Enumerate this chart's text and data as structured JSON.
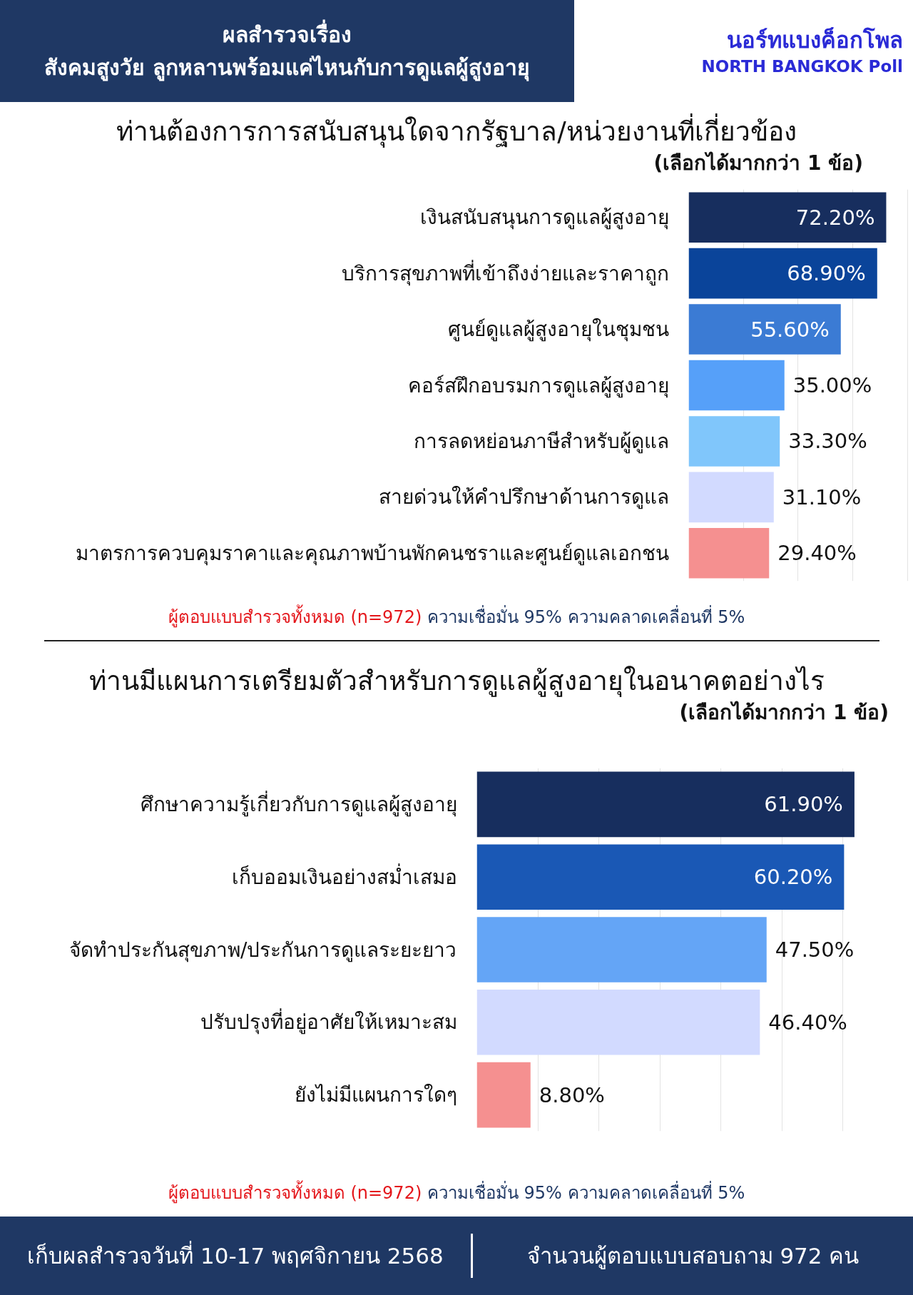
{
  "chart_data": [
    {
      "type": "other",
      "title": "ผลสำรวจเรื่อง",
      "subtitle": "สังคมสูงวัย ลูกหลานพร้อมแค่ไหนกับการดูแลผู้สูงอายุ",
      "annotations": [
        "นอร์ทแบงค็อกโพล",
        "NORTH BANGKOK Poll"
      ]
    },
    {
      "type": "bar",
      "orientation": "horizontal",
      "title": "ท่านต้องการการสนับสนุนใดจากรัฐบาล/หน่วยงานที่เกี่ยวข้อง",
      "subtitle": "(เลือกได้มากกว่า 1 ข้อ)",
      "categories": [
        "เงินสนับสนุนการดูแลผู้สูงอายุ",
        "บริการสุขภาพที่เข้าถึงง่ายและราคาถูก",
        "ศูนย์ดูแลผู้สูงอายุในชุมชน",
        "คอร์สฝึกอบรมการดูแลผู้สูงอายุ",
        "การลดหย่อนภาษีสำหรับผู้ดูแล",
        "สายด่วนให้คำปรึกษาด้านการดูแล",
        "มาตรการควบคุมราคาและคุณภาพบ้านพักคนชราและศูนย์ดูแลเอกชน"
      ],
      "values": [
        72.2,
        68.9,
        55.6,
        35.0,
        33.3,
        31.1,
        29.4
      ],
      "colors": [
        "#172e5e",
        "#0a449a",
        "#3b7bd4",
        "#56a0f9",
        "#80c6fb",
        "#d2daff",
        "#f59090"
      ],
      "value_labels": [
        "72.20%",
        "68.90%",
        "55.60%",
        "35.00%",
        "33.30%",
        "31.10%",
        "29.40%"
      ],
      "xticks": [
        {
          "value": 20,
          "label": null
        },
        {
          "value": 40,
          "label": null
        },
        {
          "value": 60,
          "label": null
        },
        {
          "value": 80,
          "label": null
        }
      ],
      "grid": "x",
      "tick_labels": "y",
      "annotations": [
        "ผู้ตอบแบบสำรวจทั้งหมด (n=972)",
        "ความเชื่อมั่น 95% ความคลาดเคลื่อนที่ 5%"
      ]
    },
    {
      "type": "bar",
      "orientation": "horizontal",
      "title": "ท่านมีแผนการเตรียมตัวสำหรับการดูแลผู้สูงอายุในอนาคตอย่างไร",
      "subtitle": "(เลือกได้มากกว่า 1 ข้อ)",
      "categories": [
        "ศึกษาความรู้เกี่ยวกับการดูแลผู้สูงอายุ",
        "เก็บออมเงินอย่างสม่ำเสมอ",
        "จัดทำประกันสุขภาพ/ประกันการดูแลระยะยาว",
        "ปรับปรุงที่อยู่อาศัยให้เหมาะสม",
        "ยังไม่มีแผนการใดๆ"
      ],
      "values": [
        61.9,
        60.2,
        47.5,
        46.4,
        8.8
      ],
      "colors": [
        "#172e5e",
        "#1a58b5",
        "#64a5f6",
        "#d2daff",
        "#f59090"
      ],
      "value_labels": [
        "61.90%",
        "60.20%",
        "47.50%",
        "46.40%",
        "8.80%"
      ],
      "xticks": [
        {
          "value": 10,
          "label": null
        },
        {
          "value": 20,
          "label": null
        },
        {
          "value": 30,
          "label": null
        },
        {
          "value": 40,
          "label": null
        },
        {
          "value": 50,
          "label": null
        },
        {
          "value": 60,
          "label": null
        }
      ],
      "grid": "x",
      "tick_labels": "y",
      "annotations": [
        "ผู้ตอบแบบสำรวจทั้งหมด (n=972)",
        "ความเชื่อมั่น 95% ความคลาดเคลื่อนที่ 5%"
      ]
    },
    {
      "type": "other",
      "annotations": [
        "เก็บผลสำรวจวันที่ 10-17 พฤศจิกายน 2568",
        "จำนวนผู้ตอบแบบสอบถาม 972 คน"
      ]
    }
  ]
}
